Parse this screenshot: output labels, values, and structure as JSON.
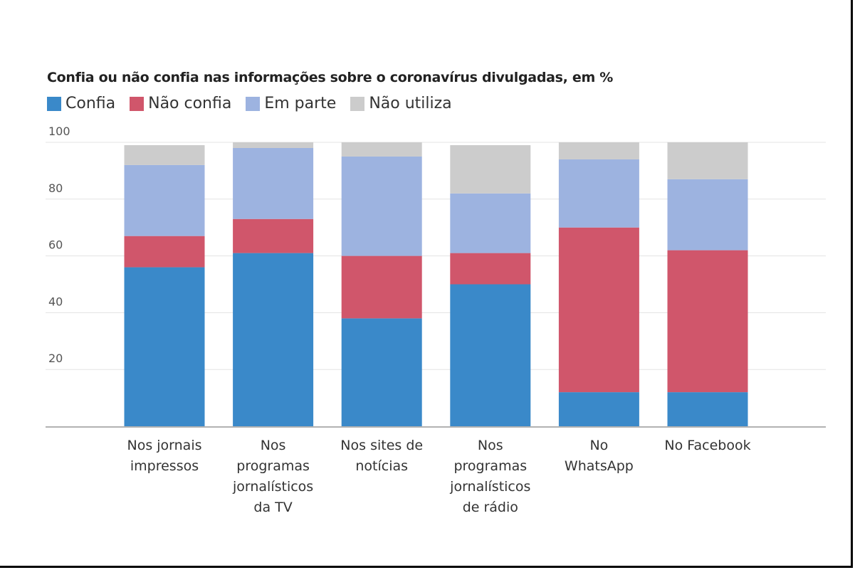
{
  "chart_data": {
    "type": "bar",
    "stacked": true,
    "title": "Confia ou não confia nas informações sobre o coronavírus divulgadas, em %",
    "categories": [
      [
        "Nos jornais",
        "impressos"
      ],
      [
        "Nos",
        "programas",
        "jornalísticos",
        "da TV"
      ],
      [
        "Nos sites de",
        "notícias"
      ],
      [
        "Nos",
        "programas",
        "jornalísticos",
        "de rádio"
      ],
      [
        "No",
        "WhatsApp"
      ],
      [
        "No Facebook"
      ]
    ],
    "series": [
      {
        "name": "Confia",
        "color": "#3a89c9",
        "values": [
          56,
          61,
          38,
          50,
          12,
          12
        ]
      },
      {
        "name": "Não confia",
        "color": "#d0566b",
        "values": [
          11,
          12,
          22,
          11,
          58,
          50
        ]
      },
      {
        "name": "Em parte",
        "color": "#9db3e0",
        "values": [
          25,
          25,
          35,
          21,
          24,
          25
        ]
      },
      {
        "name": "Não utiliza",
        "color": "#cccccc",
        "values": [
          7,
          2,
          5,
          17,
          6,
          13
        ]
      }
    ],
    "ylim": [
      0,
      100
    ],
    "yticks": [
      20,
      40,
      60,
      80,
      100
    ],
    "grid": true,
    "legend": "top-left"
  }
}
